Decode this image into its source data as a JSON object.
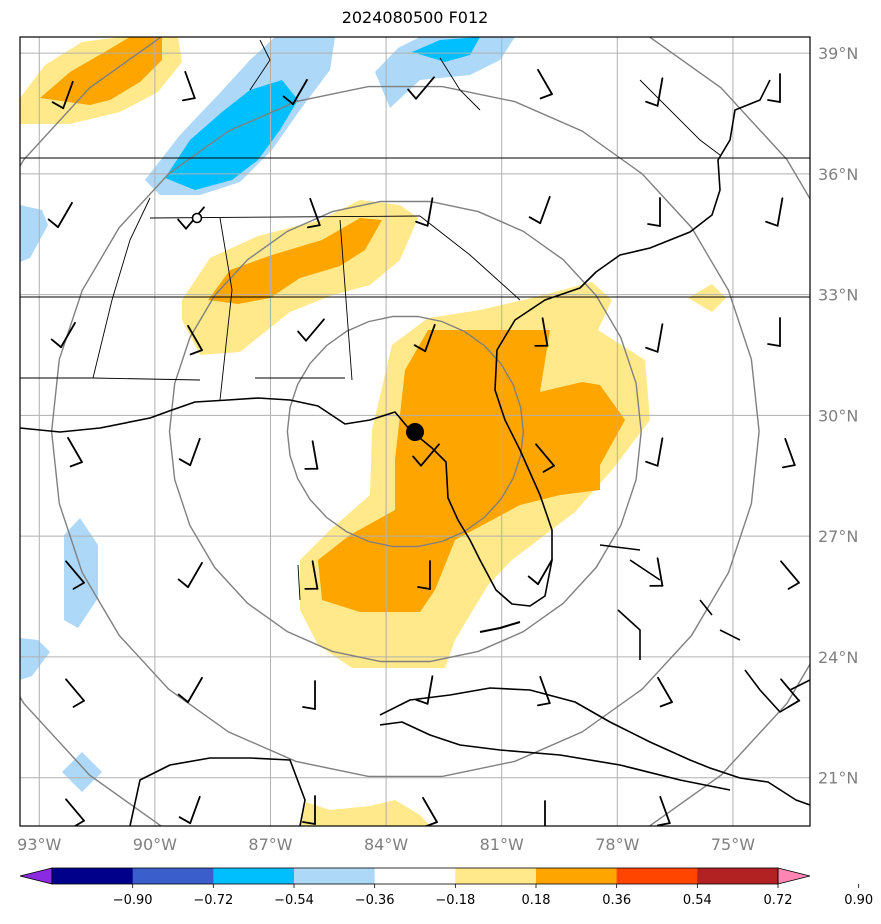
{
  "title": "2024080500 F012",
  "map": {
    "projection": "PlateCarree",
    "lon_range": [
      -93.5,
      -73.0
    ],
    "lat_range": [
      19.8,
      39.4
    ],
    "lon_ticks": [
      -93,
      -90,
      -87,
      -84,
      -81,
      -78,
      -75
    ],
    "lat_ticks": [
      21,
      24,
      27,
      30,
      33,
      36,
      39
    ],
    "lon_labels": [
      "93°W",
      "90°W",
      "87°W",
      "84°W",
      "81°W",
      "78°W",
      "75°W"
    ],
    "lat_labels": [
      "21°N",
      "24°N",
      "27°N",
      "30°N",
      "33°N",
      "36°N",
      "39°N"
    ],
    "gridlines": true,
    "storm_center": {
      "lon": -83.5,
      "lat": 29.6,
      "marker": "filled-circle"
    },
    "secondary_marker": {
      "lon": -88.5,
      "lat": 35.0,
      "marker": "open-circle"
    },
    "range_rings_deg": [
      3,
      6,
      9,
      12
    ]
  },
  "colorbar": {
    "ticks": [
      "−0.90",
      "−0.72",
      "−0.54",
      "−0.36",
      "−0.18",
      "0.18",
      "0.36",
      "0.54",
      "0.72",
      "0.90"
    ],
    "colors": [
      "#8a2be2",
      "#00008b",
      "#3a5fcd",
      "#00bfff",
      "#add8f7",
      "#ffffff",
      "#ffe98a",
      "#ffa500",
      "#ff4500",
      "#b22222",
      "#ff86b2"
    ],
    "extend": "both"
  },
  "legend_colors": {
    "pos_light": "#ffe98a",
    "pos_mid": "#ffa500",
    "neg_light": "#add8f7",
    "neg_mid": "#00bfff"
  }
}
